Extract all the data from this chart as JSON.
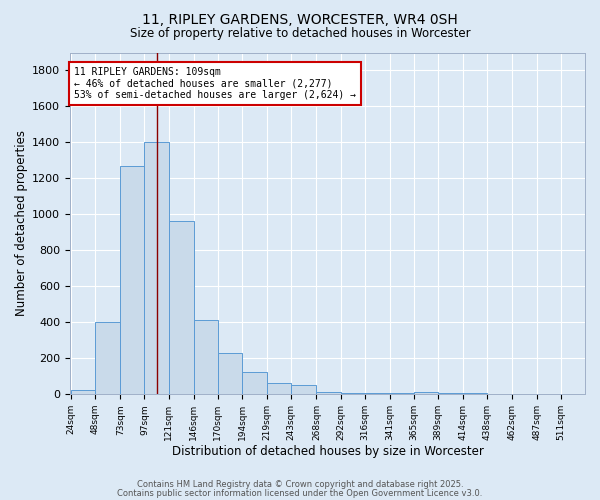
{
  "title1": "11, RIPLEY GARDENS, WORCESTER, WR4 0SH",
  "title2": "Size of property relative to detached houses in Worcester",
  "xlabel": "Distribution of detached houses by size in Worcester",
  "ylabel": "Number of detached properties",
  "bin_labels": [
    "24sqm",
    "48sqm",
    "73sqm",
    "97sqm",
    "121sqm",
    "146sqm",
    "170sqm",
    "194sqm",
    "219sqm",
    "243sqm",
    "268sqm",
    "292sqm",
    "316sqm",
    "341sqm",
    "365sqm",
    "389sqm",
    "414sqm",
    "438sqm",
    "462sqm",
    "487sqm",
    "511sqm"
  ],
  "bin_edges": [
    24,
    48,
    73,
    97,
    121,
    146,
    170,
    194,
    219,
    243,
    268,
    292,
    316,
    341,
    365,
    389,
    414,
    438,
    462,
    487,
    511
  ],
  "bar_heights": [
    25,
    400,
    1270,
    1400,
    965,
    415,
    230,
    125,
    65,
    50,
    15,
    5,
    5,
    5,
    10,
    5,
    5,
    2,
    2,
    2,
    0
  ],
  "bar_facecolor": "#c9daea",
  "bar_edgecolor": "#5b9bd5",
  "bg_color": "#dce9f5",
  "grid_color": "#ffffff",
  "vline_x": 109,
  "vline_color": "#8b0000",
  "annotation_text": "11 RIPLEY GARDENS: 109sqm\n← 46% of detached houses are smaller (2,277)\n53% of semi-detached houses are larger (2,624) →",
  "annotation_box_facecolor": "#ffffff",
  "annotation_box_edgecolor": "#cc0000",
  "ylim": [
    0,
    1900
  ],
  "yticks": [
    0,
    200,
    400,
    600,
    800,
    1000,
    1200,
    1400,
    1600,
    1800
  ],
  "footer1": "Contains HM Land Registry data © Crown copyright and database right 2025.",
  "footer2": "Contains public sector information licensed under the Open Government Licence v3.0."
}
